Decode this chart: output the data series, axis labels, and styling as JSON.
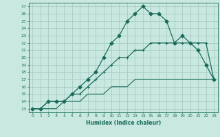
{
  "xlabel": "Humidex (Indice chaleur)",
  "xlim": [
    -0.5,
    23.5
  ],
  "ylim": [
    12.5,
    27.5
  ],
  "yticks": [
    13,
    14,
    15,
    16,
    17,
    18,
    19,
    20,
    21,
    22,
    23,
    24,
    25,
    26,
    27
  ],
  "xticks": [
    0,
    1,
    2,
    3,
    4,
    5,
    6,
    7,
    8,
    9,
    10,
    11,
    12,
    13,
    14,
    15,
    16,
    17,
    18,
    19,
    20,
    21,
    22,
    23
  ],
  "bg_color": "#c8e8e0",
  "grid_color": "#a8ccc4",
  "line_color": "#1a6b5a",
  "line1_x": [
    0,
    1,
    2,
    3,
    4,
    5,
    6,
    7,
    8,
    9,
    10,
    11,
    12,
    13,
    14,
    15,
    16,
    17,
    18,
    19,
    20,
    21,
    22,
    23
  ],
  "line1_y": [
    13,
    13,
    14,
    14,
    14,
    15,
    16,
    17,
    18,
    20,
    22,
    23,
    25,
    26,
    27,
    26,
    26,
    25,
    22,
    23,
    22,
    21,
    19,
    17
  ],
  "line2_x": [
    0,
    1,
    2,
    3,
    4,
    5,
    6,
    7,
    8,
    9,
    10,
    11,
    12,
    13,
    14,
    15,
    16,
    17,
    18,
    19,
    20,
    21,
    22,
    23
  ],
  "line2_y": [
    13,
    13,
    14,
    14,
    14,
    15,
    15,
    16,
    17,
    18,
    19,
    20,
    20,
    21,
    21,
    22,
    22,
    22,
    22,
    22,
    22,
    22,
    22,
    17
  ],
  "line3_x": [
    0,
    1,
    2,
    3,
    4,
    5,
    6,
    7,
    8,
    9,
    10,
    11,
    12,
    13,
    14,
    15,
    16,
    17,
    18,
    19,
    20,
    21,
    22,
    23
  ],
  "line3_y": [
    13,
    13,
    13,
    13,
    14,
    14,
    14,
    15,
    15,
    15,
    16,
    16,
    16,
    17,
    17,
    17,
    17,
    17,
    17,
    17,
    17,
    17,
    17,
    17
  ]
}
